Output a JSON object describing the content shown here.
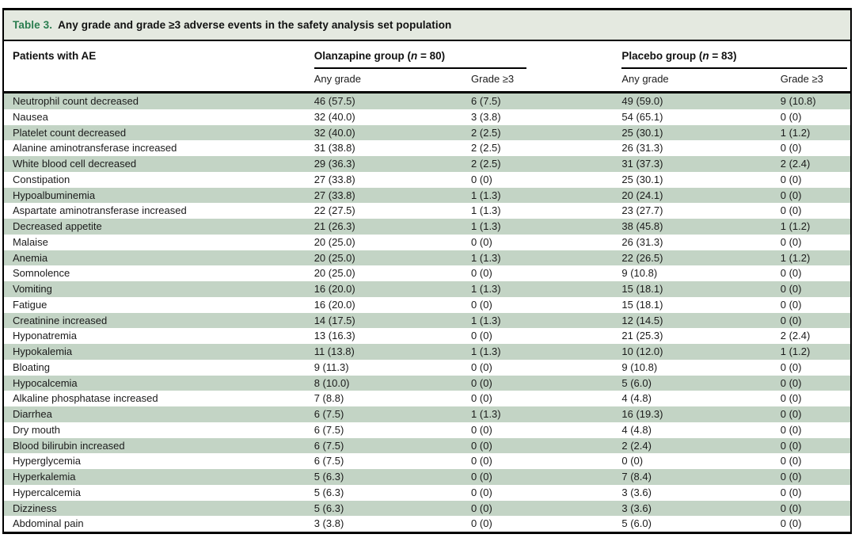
{
  "table": {
    "title_label": "Table 3.",
    "title_text": "Any grade and grade ≥3 adverse events in the safety analysis set population",
    "col1_header": "Patients with AE",
    "groups": [
      {
        "prefix": "Olanzapine group (",
        "n": "n",
        "suffix": " = 80)"
      },
      {
        "prefix": "Placebo group (",
        "n": "n",
        "suffix": " = 83)"
      }
    ],
    "subheaders": [
      "Any grade",
      "Grade ≥3",
      "Any grade",
      "Grade ≥3"
    ],
    "rows": [
      {
        "name": "Neutrophil count decreased",
        "values": [
          "46 (57.5)",
          "6 (7.5)",
          "49 (59.0)",
          "9 (10.8)"
        ]
      },
      {
        "name": "Nausea",
        "values": [
          "32 (40.0)",
          "3 (3.8)",
          "54 (65.1)",
          "0 (0)"
        ]
      },
      {
        "name": "Platelet count decreased",
        "values": [
          "32 (40.0)",
          "2 (2.5)",
          "25 (30.1)",
          "1 (1.2)"
        ]
      },
      {
        "name": "Alanine aminotransferase increased",
        "values": [
          "31 (38.8)",
          "2 (2.5)",
          "26 (31.3)",
          "0 (0)"
        ]
      },
      {
        "name": "White blood cell decreased",
        "values": [
          "29 (36.3)",
          "2 (2.5)",
          "31 (37.3)",
          "2 (2.4)"
        ]
      },
      {
        "name": "Constipation",
        "values": [
          "27 (33.8)",
          "0 (0)",
          "25 (30.1)",
          "0 (0)"
        ]
      },
      {
        "name": "Hypoalbuminemia",
        "values": [
          "27 (33.8)",
          "1 (1.3)",
          "20 (24.1)",
          "0 (0)"
        ]
      },
      {
        "name": "Aspartate aminotransferase increased",
        "values": [
          "22 (27.5)",
          "1 (1.3)",
          "23 (27.7)",
          "0 (0)"
        ]
      },
      {
        "name": "Decreased appetite",
        "values": [
          "21 (26.3)",
          "1 (1.3)",
          "38 (45.8)",
          "1 (1.2)"
        ]
      },
      {
        "name": "Malaise",
        "values": [
          "20 (25.0)",
          "0 (0)",
          "26 (31.3)",
          "0 (0)"
        ]
      },
      {
        "name": "Anemia",
        "values": [
          "20 (25.0)",
          "1 (1.3)",
          "22 (26.5)",
          "1 (1.2)"
        ]
      },
      {
        "name": "Somnolence",
        "values": [
          "20 (25.0)",
          "0 (0)",
          "9 (10.8)",
          "0 (0)"
        ]
      },
      {
        "name": "Vomiting",
        "values": [
          "16 (20.0)",
          "1 (1.3)",
          "15 (18.1)",
          "0 (0)"
        ]
      },
      {
        "name": "Fatigue",
        "values": [
          "16 (20.0)",
          "0 (0)",
          "15 (18.1)",
          "0 (0)"
        ]
      },
      {
        "name": "Creatinine increased",
        "values": [
          "14 (17.5)",
          "1 (1.3)",
          "12 (14.5)",
          "0 (0)"
        ]
      },
      {
        "name": "Hyponatremia",
        "values": [
          "13 (16.3)",
          "0 (0)",
          "21 (25.3)",
          "2 (2.4)"
        ]
      },
      {
        "name": "Hypokalemia",
        "values": [
          "11 (13.8)",
          "1 (1.3)",
          "10 (12.0)",
          "1 (1.2)"
        ]
      },
      {
        "name": "Bloating",
        "values": [
          "9 (11.3)",
          "0 (0)",
          "9 (10.8)",
          "0 (0)"
        ]
      },
      {
        "name": "Hypocalcemia",
        "values": [
          "8 (10.0)",
          "0 (0)",
          "5 (6.0)",
          "0 (0)"
        ]
      },
      {
        "name": "Alkaline phosphatase increased",
        "values": [
          "7 (8.8)",
          "0 (0)",
          "4 (4.8)",
          "0 (0)"
        ]
      },
      {
        "name": "Diarrhea",
        "values": [
          "6 (7.5)",
          "1 (1.3)",
          "16 (19.3)",
          "0 (0)"
        ]
      },
      {
        "name": "Dry mouth",
        "values": [
          "6 (7.5)",
          "0 (0)",
          "4 (4.8)",
          "0 (0)"
        ]
      },
      {
        "name": "Blood bilirubin increased",
        "values": [
          "6 (7.5)",
          "0 (0)",
          "2 (2.4)",
          "0 (0)"
        ]
      },
      {
        "name": "Hyperglycemia",
        "values": [
          "6 (7.5)",
          "0 (0)",
          "0 (0)",
          "0 (0)"
        ]
      },
      {
        "name": "Hyperkalemia",
        "values": [
          "5 (6.3)",
          "0 (0)",
          "7 (8.4)",
          "0 (0)"
        ]
      },
      {
        "name": "Hypercalcemia",
        "values": [
          "5 (6.3)",
          "0 (0)",
          "3 (3.6)",
          "0 (0)"
        ]
      },
      {
        "name": "Dizziness",
        "values": [
          "5 (6.3)",
          "0 (0)",
          "3 (3.6)",
          "0 (0)"
        ]
      },
      {
        "name": "Abdominal pain",
        "values": [
          "3 (3.8)",
          "0 (0)",
          "5 (6.0)",
          "0 (0)"
        ]
      }
    ]
  },
  "colors": {
    "row_stripe_green": "#c3d4c5",
    "title_bar_background": "#e4e9e0",
    "table_number_green": "#2a7d4f",
    "border_black": "#000000"
  }
}
